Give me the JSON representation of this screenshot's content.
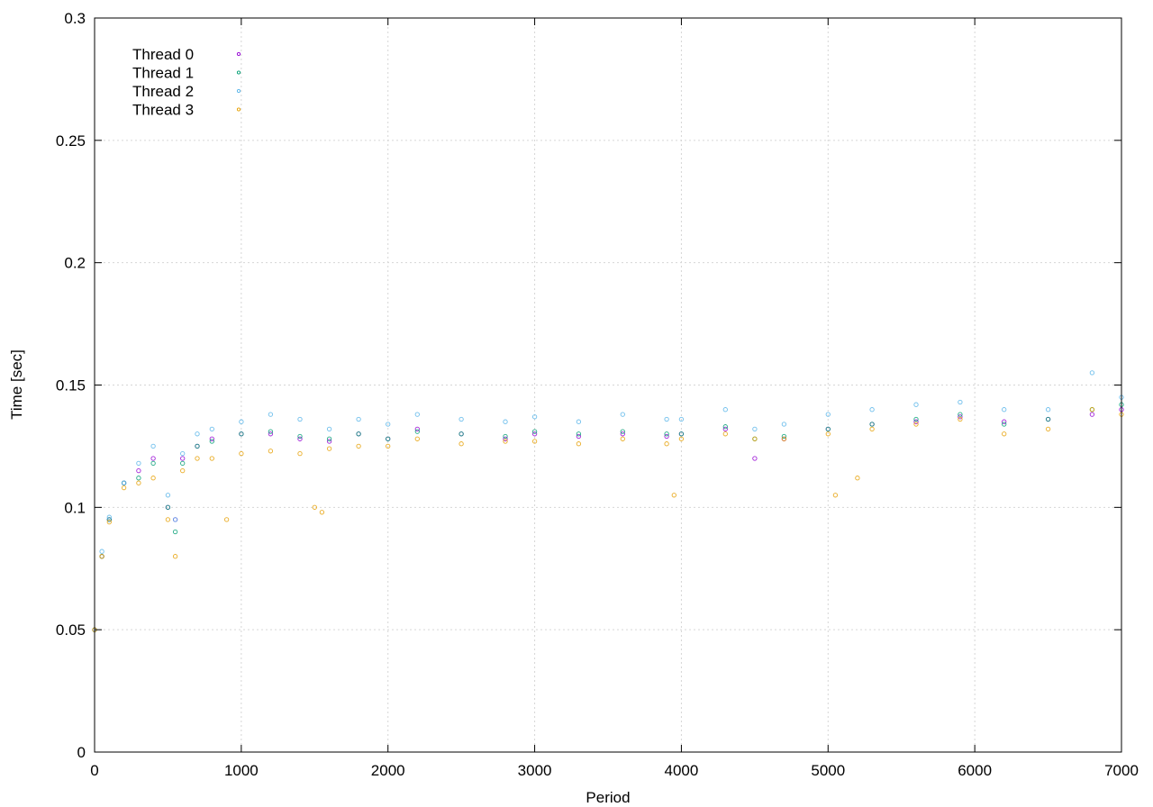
{
  "chart_data": {
    "type": "scatter",
    "title": "",
    "xlabel": "Period",
    "ylabel": "Time [sec]",
    "xlim": [
      0,
      7000
    ],
    "ylim": [
      0,
      0.3
    ],
    "x_ticks": [
      0,
      1000,
      2000,
      3000,
      4000,
      5000,
      6000,
      7000
    ],
    "x_tick_labels": [
      "0",
      "1000",
      "2000",
      "3000",
      "4000",
      "5000",
      "6000",
      "7000"
    ],
    "y_ticks": [
      0,
      0.05,
      0.1,
      0.15,
      0.2,
      0.25,
      0.3
    ],
    "y_tick_labels": [
      "0",
      "0.05",
      "0.1",
      "0.15",
      "0.2",
      "0.25",
      "0.3"
    ],
    "grid": true,
    "legend_position": "top-left",
    "series": [
      {
        "name": "Thread 0",
        "color": "#9400d3",
        "x": [
          0,
          50,
          100,
          200,
          300,
          400,
          500,
          550,
          600,
          700,
          800,
          1000,
          1200,
          1400,
          1600,
          1800,
          2000,
          2200,
          2500,
          2800,
          3000,
          3300,
          3600,
          3900,
          4000,
          4300,
          4500,
          4700,
          5000,
          5300,
          5600,
          5900,
          6200,
          6500,
          6800,
          7000
        ],
        "y": [
          0.05,
          0.08,
          0.095,
          0.11,
          0.115,
          0.12,
          0.1,
          0.095,
          0.12,
          0.125,
          0.128,
          0.13,
          0.13,
          0.128,
          0.127,
          0.13,
          0.128,
          0.132,
          0.13,
          0.128,
          0.13,
          0.129,
          0.13,
          0.129,
          0.13,
          0.132,
          0.12,
          0.128,
          0.132,
          0.134,
          0.135,
          0.137,
          0.135,
          0.136,
          0.138,
          0.14
        ]
      },
      {
        "name": "Thread 1",
        "color": "#009e73",
        "x": [
          0,
          50,
          100,
          200,
          300,
          400,
          500,
          550,
          600,
          700,
          800,
          1000,
          1200,
          1400,
          1600,
          1800,
          2000,
          2200,
          2500,
          2800,
          3000,
          3300,
          3600,
          3900,
          4000,
          4300,
          4500,
          4700,
          5000,
          5300,
          5600,
          5900,
          6200,
          6500,
          6800,
          7000
        ],
        "y": [
          0.05,
          0.08,
          0.095,
          0.11,
          0.112,
          0.118,
          0.1,
          0.09,
          0.118,
          0.125,
          0.127,
          0.13,
          0.131,
          0.129,
          0.128,
          0.13,
          0.128,
          0.131,
          0.13,
          0.129,
          0.131,
          0.13,
          0.131,
          0.13,
          0.13,
          0.133,
          0.128,
          0.129,
          0.132,
          0.134,
          0.136,
          0.138,
          0.134,
          0.136,
          0.14,
          0.142
        ]
      },
      {
        "name": "Thread 2",
        "color": "#56b4e9",
        "x": [
          0,
          50,
          100,
          200,
          300,
          400,
          500,
          550,
          600,
          700,
          800,
          1000,
          1200,
          1400,
          1600,
          1800,
          2000,
          2200,
          2500,
          2800,
          3000,
          3300,
          3600,
          3900,
          4000,
          4300,
          4500,
          4700,
          5000,
          5300,
          5600,
          5900,
          6200,
          6500,
          6800,
          7000
        ],
        "y": [
          0.05,
          0.082,
          0.096,
          0.11,
          0.118,
          0.125,
          0.105,
          0.095,
          0.122,
          0.13,
          0.132,
          0.135,
          0.138,
          0.136,
          0.132,
          0.136,
          0.134,
          0.138,
          0.136,
          0.135,
          0.137,
          0.135,
          0.138,
          0.136,
          0.136,
          0.14,
          0.132,
          0.134,
          0.138,
          0.14,
          0.142,
          0.143,
          0.14,
          0.14,
          0.155,
          0.145
        ]
      },
      {
        "name": "Thread 3",
        "color": "#e69f00",
        "x": [
          0,
          50,
          100,
          200,
          300,
          400,
          500,
          550,
          600,
          700,
          800,
          900,
          1000,
          1200,
          1400,
          1500,
          1550,
          1600,
          1800,
          2000,
          2200,
          2500,
          2800,
          3000,
          3300,
          3600,
          3900,
          3950,
          4000,
          4300,
          4500,
          4700,
          5000,
          5050,
          5200,
          5300,
          5600,
          5900,
          6200,
          6500,
          6800,
          7000
        ],
        "y": [
          0.05,
          0.08,
          0.094,
          0.108,
          0.11,
          0.112,
          0.095,
          0.08,
          0.115,
          0.12,
          0.12,
          0.095,
          0.122,
          0.123,
          0.122,
          0.1,
          0.098,
          0.124,
          0.125,
          0.125,
          0.128,
          0.126,
          0.127,
          0.127,
          0.126,
          0.128,
          0.126,
          0.105,
          0.128,
          0.13,
          0.128,
          0.128,
          0.13,
          0.105,
          0.112,
          0.132,
          0.134,
          0.136,
          0.13,
          0.132,
          0.14,
          0.138
        ]
      }
    ]
  }
}
